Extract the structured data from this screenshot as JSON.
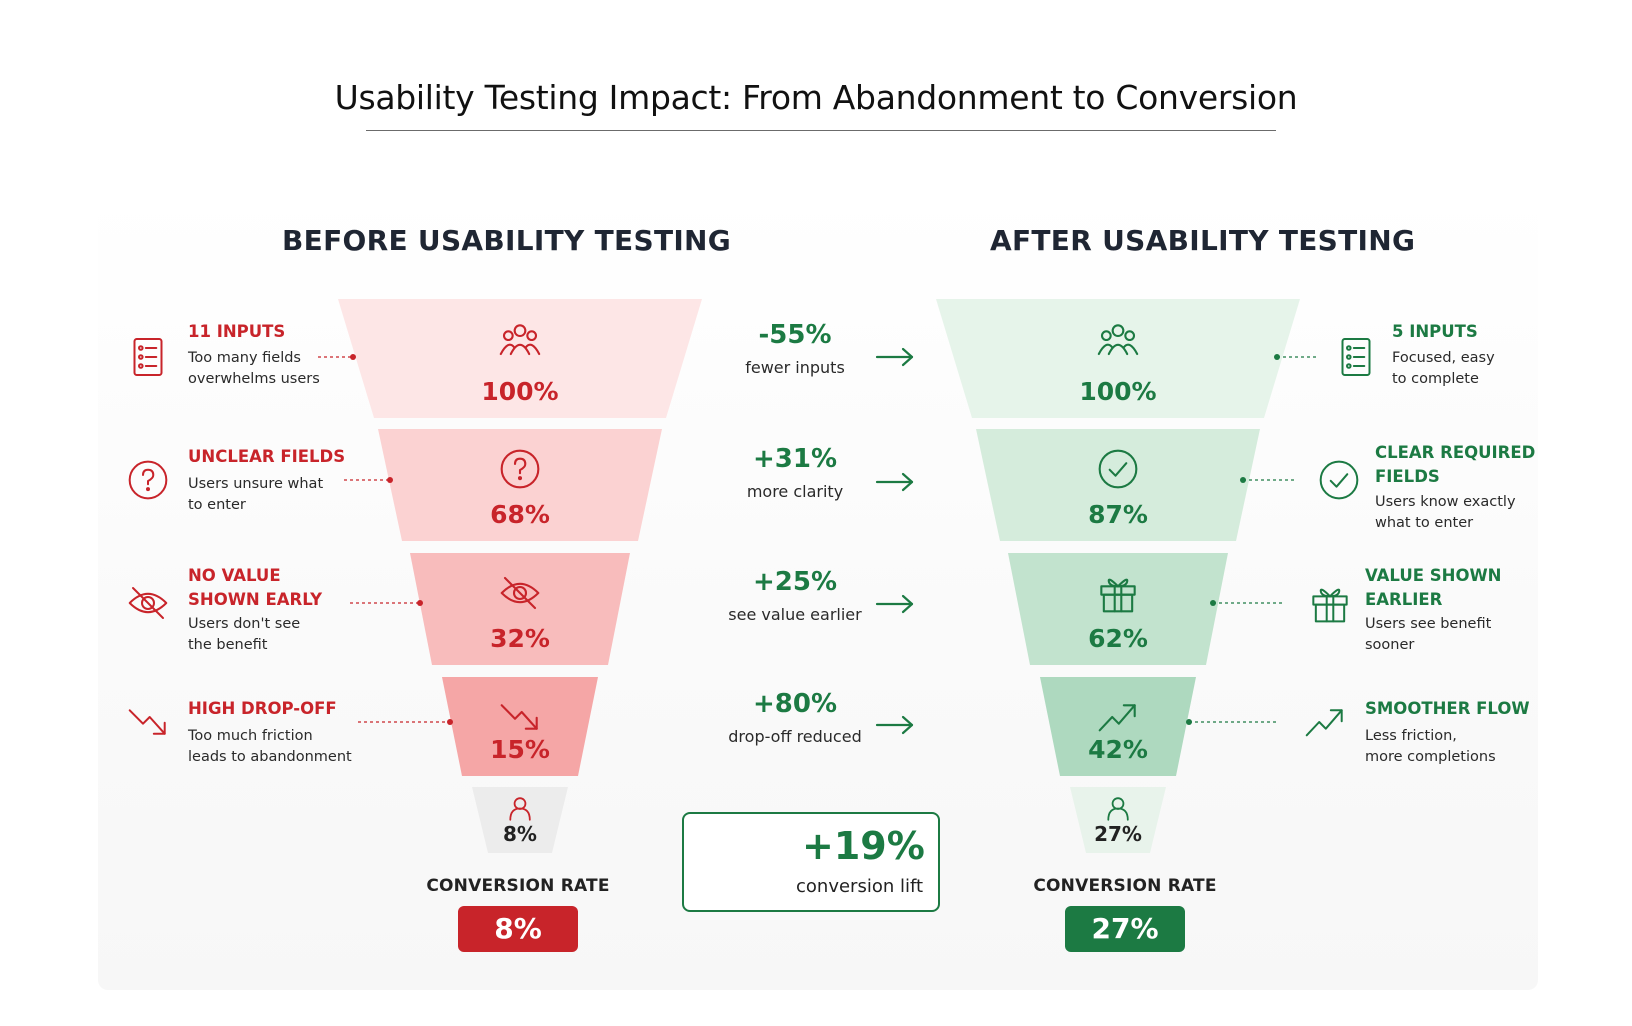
{
  "title": "Usability Testing Impact: From Abandonment to Conversion",
  "colors": {
    "red": "#c8242a",
    "green": "#1c7a43",
    "before_funnel": [
      "#fde6e6",
      "#fbd2d2",
      "#f8bcbc",
      "#f5a6a6",
      "#ececec"
    ],
    "after_funnel": [
      "#e6f4ea",
      "#d5ecdc",
      "#c2e3ce",
      "#aed9bf",
      "#e8f3eb"
    ]
  },
  "before": {
    "heading": "BEFORE USABILITY TESTING",
    "stages": [
      {
        "percent": "100%",
        "icon": "users-group-icon"
      },
      {
        "percent": "68%",
        "icon": "question-circle-icon"
      },
      {
        "percent": "32%",
        "icon": "eye-off-icon"
      },
      {
        "percent": "15%",
        "icon": "trend-down-icon"
      },
      {
        "percent": "8%",
        "icon": "user-icon"
      }
    ],
    "notes": [
      {
        "icon": "form-list-icon",
        "tag": "11 INPUTS",
        "desc": "Too many fields\noverwhelms users"
      },
      {
        "icon": "question-circle-icon",
        "tag": "UNCLEAR FIELDS",
        "desc": "Users unsure what\nto enter"
      },
      {
        "icon": "eye-off-icon",
        "tag": "NO VALUE\nSHOWN EARLY",
        "desc": "Users don't see\nthe benefit"
      },
      {
        "icon": "trend-down-icon",
        "tag": "HIGH DROP-OFF",
        "desc": "Too much friction\nleads to abandonment"
      }
    ],
    "conversion_label": "CONVERSION RATE",
    "conversion_value": "8%"
  },
  "after": {
    "heading": "AFTER USABILITY TESTING",
    "stages": [
      {
        "percent": "100%",
        "icon": "users-group-icon"
      },
      {
        "percent": "87%",
        "icon": "check-circle-icon"
      },
      {
        "percent": "62%",
        "icon": "gift-icon"
      },
      {
        "percent": "42%",
        "icon": "trend-up-icon"
      },
      {
        "percent": "27%",
        "icon": "user-icon"
      }
    ],
    "notes": [
      {
        "icon": "form-list-icon",
        "tag": "5 INPUTS",
        "desc": "Focused, easy\nto complete"
      },
      {
        "icon": "check-circle-icon",
        "tag": "CLEAR REQUIRED\nFIELDS",
        "desc": "Users know exactly\nwhat to enter"
      },
      {
        "icon": "gift-icon",
        "tag": "VALUE SHOWN\nEARLIER",
        "desc": "Users see benefit\nsooner"
      },
      {
        "icon": "trend-up-icon",
        "tag": "SMOOTHER FLOW",
        "desc": "Less friction,\nmore completions"
      }
    ],
    "conversion_label": "CONVERSION RATE",
    "conversion_value": "27%"
  },
  "improvements": [
    {
      "value": "-55%",
      "label": "fewer inputs"
    },
    {
      "value": "+31%",
      "label": "more clarity"
    },
    {
      "value": "+25%",
      "label": "see value earlier"
    },
    {
      "value": "+80%",
      "label": "drop-off reduced"
    }
  ],
  "lift": {
    "value": "+19%",
    "label": "conversion lift"
  }
}
